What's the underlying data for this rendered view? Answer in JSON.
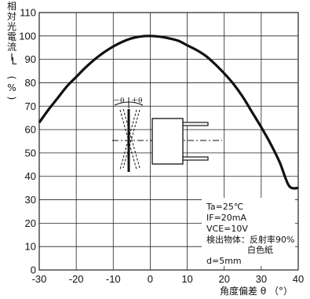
{
  "chart_data": {
    "type": "line",
    "title": "",
    "ylabel_lines": [
      "相",
      "対",
      "光",
      "電",
      "流",
      "I",
      "L",
      "(",
      "%",
      ")"
    ],
    "ylabel": "相対光電流 IL (%)",
    "xlabel": "角度偏差 θ （°）",
    "xlim": [
      -30,
      40
    ],
    "ylim": [
      0,
      110
    ],
    "xticks": [
      -30,
      -20,
      -10,
      0,
      10,
      20,
      30,
      40
    ],
    "yticks": [
      0,
      10,
      20,
      30,
      40,
      50,
      60,
      70,
      80,
      90,
      100,
      110
    ],
    "grid": true,
    "series": [
      {
        "x": [
          -30,
          -27.5,
          -25,
          -22.5,
          -20,
          -17.5,
          -15,
          -12.5,
          -10,
          -7.5,
          -5,
          -2.5,
          0,
          2.5,
          5,
          7.5,
          10,
          12.5,
          15,
          17.5,
          20,
          22.5,
          25,
          27.5,
          30,
          32.5,
          35,
          37.5,
          40
        ],
        "y": [
          63,
          68.5,
          73.5,
          78.5,
          82.5,
          86.5,
          90,
          93,
          95.5,
          97.5,
          99,
          99.8,
          100,
          99.7,
          99,
          98,
          96,
          94,
          91.5,
          88,
          84,
          79.5,
          74,
          67.5,
          61,
          54,
          46,
          36,
          35
        ]
      }
    ],
    "conditions": [
      "Ta=25℃",
      "IF=20mA",
      "VCE=10V",
      "検出物体：反射率90%",
      "白色紙",
      "d=5mm"
    ],
    "inset_labels": {
      "minus_theta": "－θ",
      "plus_theta": "＋θ"
    }
  },
  "colors": {
    "line": "#111111",
    "grid": "#222222",
    "background": "#ffffff"
  }
}
